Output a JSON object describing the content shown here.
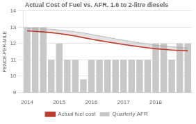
{
  "chart_data": {
    "type": "bar",
    "title": "Actual Cost of Fuel vs. AFR. 1.6 to 2-litre diesels",
    "ylabel": "PENCE-PER-MILE",
    "categories": [
      "2014",
      null,
      null,
      null,
      "2015",
      null,
      null,
      null,
      "2016",
      null,
      null,
      null,
      "2017",
      null,
      null,
      null,
      "2018",
      null,
      null,
      null,
      null
    ],
    "series": [
      {
        "name": "Quarterly AFR",
        "type": "bar",
        "color": "#c8c8c8",
        "values": [
          13,
          13,
          13,
          11,
          12,
          11,
          11,
          9.8,
          11,
          11,
          11,
          11,
          11,
          11,
          11,
          11,
          12,
          12,
          11,
          12,
          12
        ]
      },
      {
        "name": "Actual fuel cost",
        "type": "line",
        "color": "#c0392b",
        "values": [
          12.78,
          12.75,
          12.71,
          12.67,
          12.61,
          12.54,
          12.46,
          12.36,
          12.27,
          12.18,
          12.1,
          12.02,
          11.94,
          11.87,
          11.8,
          11.74,
          11.68,
          11.64,
          11.6,
          11.57,
          11.55
        ]
      },
      {
        "type": "line",
        "color": "#aaaaaa",
        "values": [
          12.95,
          12.93,
          12.9,
          12.87,
          12.83,
          12.78,
          12.72,
          12.65,
          12.56,
          12.47,
          12.38,
          12.29,
          12.2,
          12.12,
          12.04,
          11.97,
          11.9,
          11.85,
          11.8,
          11.77,
          11.74
        ]
      }
    ],
    "ylim": [
      9,
      14
    ],
    "yticks": [
      9,
      10,
      11,
      12,
      13,
      14
    ],
    "grid": true,
    "legend": "bottom"
  }
}
